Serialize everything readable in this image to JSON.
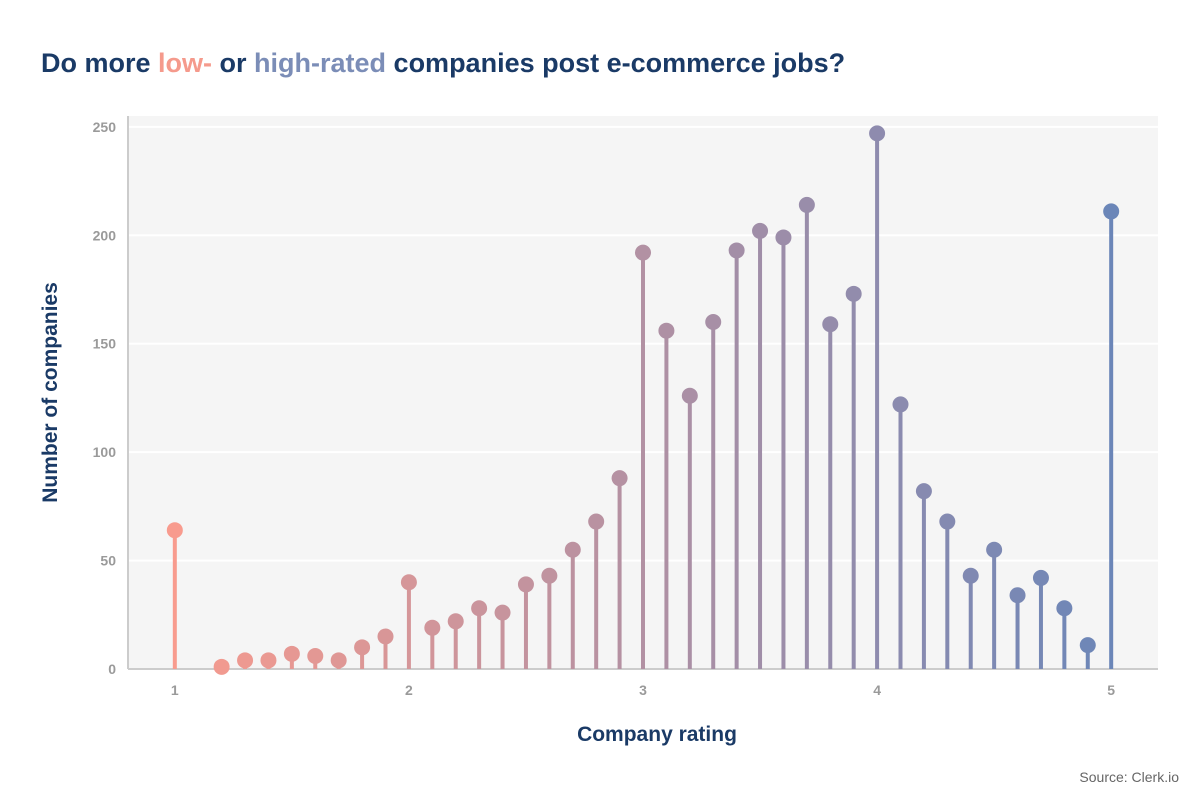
{
  "title": {
    "prefix": "Do more ",
    "low": "low-",
    "middle": " or ",
    "high": "high-rated",
    "suffix": " companies post e-commerce jobs?"
  },
  "source": "Source: Clerk.io",
  "chart_data": {
    "type": "lollipop",
    "xlabel": "Company rating",
    "ylabel": "Number of companies",
    "xlim": [
      0.8,
      5.2
    ],
    "ylim": [
      0,
      255
    ],
    "x_ticks": [
      1,
      2,
      3,
      4,
      5
    ],
    "y_ticks": [
      0,
      50,
      100,
      150,
      200,
      250
    ],
    "grid": true,
    "color_low": "#f89b8e",
    "color_high": "#6b86b8",
    "points": [
      {
        "x": 1.0,
        "y": 64
      },
      {
        "x": 1.2,
        "y": 1
      },
      {
        "x": 1.3,
        "y": 4
      },
      {
        "x": 1.4,
        "y": 4
      },
      {
        "x": 1.5,
        "y": 7
      },
      {
        "x": 1.6,
        "y": 6
      },
      {
        "x": 1.7,
        "y": 4
      },
      {
        "x": 1.8,
        "y": 10
      },
      {
        "x": 1.9,
        "y": 15
      },
      {
        "x": 2.0,
        "y": 40
      },
      {
        "x": 2.1,
        "y": 19
      },
      {
        "x": 2.2,
        "y": 22
      },
      {
        "x": 2.3,
        "y": 28
      },
      {
        "x": 2.4,
        "y": 26
      },
      {
        "x": 2.5,
        "y": 39
      },
      {
        "x": 2.6,
        "y": 43
      },
      {
        "x": 2.7,
        "y": 55
      },
      {
        "x": 2.8,
        "y": 68
      },
      {
        "x": 2.9,
        "y": 88
      },
      {
        "x": 3.0,
        "y": 192
      },
      {
        "x": 3.1,
        "y": 156
      },
      {
        "x": 3.2,
        "y": 126
      },
      {
        "x": 3.3,
        "y": 160
      },
      {
        "x": 3.4,
        "y": 193
      },
      {
        "x": 3.5,
        "y": 202
      },
      {
        "x": 3.6,
        "y": 199
      },
      {
        "x": 3.7,
        "y": 214
      },
      {
        "x": 3.8,
        "y": 159
      },
      {
        "x": 3.9,
        "y": 173
      },
      {
        "x": 4.0,
        "y": 247
      },
      {
        "x": 4.1,
        "y": 122
      },
      {
        "x": 4.2,
        "y": 82
      },
      {
        "x": 4.3,
        "y": 68
      },
      {
        "x": 4.4,
        "y": 43
      },
      {
        "x": 4.5,
        "y": 55
      },
      {
        "x": 4.6,
        "y": 34
      },
      {
        "x": 4.7,
        "y": 42
      },
      {
        "x": 4.8,
        "y": 28
      },
      {
        "x": 4.9,
        "y": 11
      },
      {
        "x": 5.0,
        "y": 211
      }
    ]
  }
}
